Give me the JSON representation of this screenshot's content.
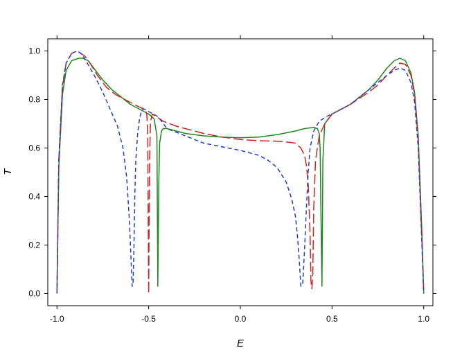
{
  "chart_data": {
    "type": "line",
    "title": "",
    "xlabel": "E",
    "ylabel": "T",
    "xlim": [
      -1.05,
      1.05
    ],
    "ylim": [
      -0.05,
      1.05
    ],
    "grid": false,
    "legend": "none",
    "x_ticks": [
      -1.0,
      -0.5,
      0.0,
      0.5,
      1.0
    ],
    "x_tick_labels": [
      "-1.0",
      "-0.5",
      "0.0",
      "0.5",
      "1.0"
    ],
    "y_ticks": [
      0.0,
      0.2,
      0.4,
      0.6,
      0.8,
      1.0
    ],
    "y_tick_labels": [
      "0.0",
      "0.2",
      "0.4",
      "0.6",
      "0.8",
      "1.0"
    ],
    "series": [
      {
        "color": "#1a8a1a",
        "dash": "solid",
        "x": [
          -1.0,
          -0.99,
          -0.97,
          -0.95,
          -0.92,
          -0.88,
          -0.86,
          -0.83,
          -0.8,
          -0.75,
          -0.7,
          -0.65,
          -0.6,
          -0.55,
          -0.5,
          -0.47,
          -0.455,
          -0.45,
          -0.445,
          -0.44,
          -0.43,
          -0.42,
          -0.4,
          -0.35,
          -0.3,
          -0.2,
          -0.1,
          0.0,
          0.1,
          0.2,
          0.3,
          0.35,
          0.4,
          0.42,
          0.43,
          0.435,
          0.44,
          0.445,
          0.45,
          0.46,
          0.5,
          0.6,
          0.7,
          0.75,
          0.8,
          0.84,
          0.87,
          0.9,
          0.93,
          0.95,
          0.97,
          0.99,
          1.0
        ],
        "y": [
          0.0,
          0.52,
          0.82,
          0.92,
          0.96,
          0.97,
          0.97,
          0.96,
          0.93,
          0.88,
          0.84,
          0.81,
          0.78,
          0.76,
          0.74,
          0.72,
          0.65,
          0.03,
          0.45,
          0.62,
          0.67,
          0.68,
          0.68,
          0.67,
          0.66,
          0.65,
          0.645,
          0.642,
          0.645,
          0.655,
          0.67,
          0.68,
          0.685,
          0.68,
          0.66,
          0.6,
          0.3,
          0.03,
          0.55,
          0.7,
          0.74,
          0.78,
          0.84,
          0.88,
          0.93,
          0.96,
          0.97,
          0.96,
          0.91,
          0.83,
          0.65,
          0.25,
          0.0
        ]
      },
      {
        "color": "#d42020",
        "dash": "long-dash",
        "x": [
          -1.0,
          -0.99,
          -0.97,
          -0.95,
          -0.92,
          -0.89,
          -0.87,
          -0.85,
          -0.82,
          -0.78,
          -0.73,
          -0.68,
          -0.63,
          -0.58,
          -0.54,
          -0.52,
          -0.51,
          -0.505,
          -0.5,
          -0.495,
          -0.49,
          -0.48,
          -0.46,
          -0.42,
          -0.35,
          -0.3,
          -0.2,
          -0.1,
          0.0,
          0.1,
          0.2,
          0.25,
          0.3,
          0.33,
          0.35,
          0.36,
          0.37,
          0.38,
          0.385,
          0.39,
          0.395,
          0.4,
          0.41,
          0.43,
          0.46,
          0.5,
          0.6,
          0.7,
          0.75,
          0.8,
          0.84,
          0.87,
          0.9,
          0.93,
          0.95,
          0.97,
          0.99,
          1.0
        ],
        "y": [
          0.0,
          0.55,
          0.85,
          0.95,
          0.99,
          1.0,
          0.99,
          0.98,
          0.95,
          0.9,
          0.85,
          0.82,
          0.8,
          0.78,
          0.765,
          0.76,
          0.74,
          0.65,
          0.0,
          0.55,
          0.71,
          0.74,
          0.73,
          0.71,
          0.69,
          0.68,
          0.66,
          0.645,
          0.635,
          0.63,
          0.628,
          0.625,
          0.62,
          0.6,
          0.57,
          0.53,
          0.45,
          0.25,
          0.05,
          0.02,
          0.08,
          0.35,
          0.55,
          0.65,
          0.7,
          0.74,
          0.78,
          0.83,
          0.86,
          0.9,
          0.93,
          0.95,
          0.945,
          0.9,
          0.82,
          0.63,
          0.22,
          0.0
        ]
      },
      {
        "color": "#1f3fd6",
        "dash": "short-dash",
        "x": [
          -1.0,
          -0.99,
          -0.97,
          -0.95,
          -0.92,
          -0.89,
          -0.87,
          -0.85,
          -0.82,
          -0.79,
          -0.75,
          -0.71,
          -0.67,
          -0.64,
          -0.62,
          -0.605,
          -0.595,
          -0.59,
          -0.585,
          -0.58,
          -0.575,
          -0.57,
          -0.56,
          -0.55,
          -0.54,
          -0.53,
          -0.52,
          -0.5,
          -0.45,
          -0.4,
          -0.3,
          -0.2,
          -0.1,
          0.0,
          0.1,
          0.15,
          0.2,
          0.25,
          0.28,
          0.3,
          0.31,
          0.32,
          0.33,
          0.34,
          0.35,
          0.36,
          0.37,
          0.38,
          0.4,
          0.43,
          0.47,
          0.5,
          0.6,
          0.7,
          0.75,
          0.8,
          0.84,
          0.87,
          0.9,
          0.93,
          0.95,
          0.97,
          0.99,
          1.0
        ],
        "y": [
          0.0,
          0.55,
          0.86,
          0.95,
          0.99,
          1.0,
          0.99,
          0.97,
          0.93,
          0.89,
          0.83,
          0.76,
          0.69,
          0.6,
          0.48,
          0.3,
          0.12,
          0.03,
          0.04,
          0.2,
          0.42,
          0.55,
          0.66,
          0.72,
          0.75,
          0.76,
          0.76,
          0.75,
          0.73,
          0.68,
          0.65,
          0.62,
          0.605,
          0.59,
          0.57,
          0.55,
          0.52,
          0.46,
          0.39,
          0.32,
          0.25,
          0.15,
          0.03,
          0.04,
          0.18,
          0.35,
          0.5,
          0.6,
          0.67,
          0.71,
          0.73,
          0.74,
          0.78,
          0.84,
          0.87,
          0.9,
          0.92,
          0.93,
          0.92,
          0.87,
          0.79,
          0.6,
          0.2,
          0.0
        ]
      }
    ]
  }
}
